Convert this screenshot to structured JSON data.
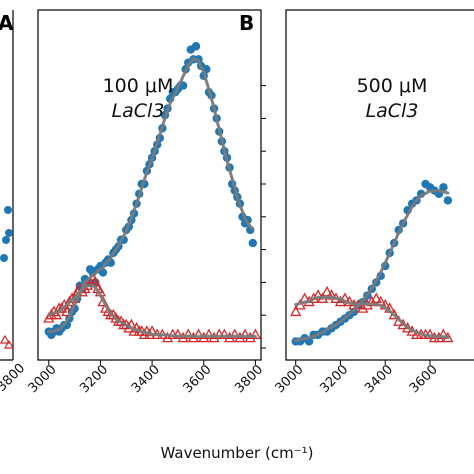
{
  "figure": {
    "xlabel": "Wavenumber (cm⁻¹)"
  },
  "colors": {
    "blue": "#1f77b4",
    "red": "#d62728",
    "fit": "#7a7a7a"
  },
  "chart_data": [
    {
      "panel_label": "A",
      "type": "scatter",
      "xtick_labels": [
        "3800"
      ],
      "series": [],
      "note_partial": true
    },
    {
      "panel_label": "B",
      "type": "scatter",
      "annotation_line1": "100 μM",
      "annotation_line2": "LaCl3",
      "xlim": [
        2970,
        3810
      ],
      "ylim": [
        0,
        1
      ],
      "xtick_labels": [
        "3000",
        "3200",
        "3400",
        "3600",
        "3800"
      ],
      "xticks": [
        3000,
        3200,
        3400,
        3600,
        3800
      ],
      "yticks": [
        0.0,
        0.1,
        0.2,
        0.3,
        0.4,
        0.5,
        0.6,
        0.7,
        0.8
      ],
      "series": [
        {
          "marker": "circle",
          "color": "#1f77b4",
          "x": [
            3000,
            3010,
            3020,
            3030,
            3040,
            3050,
            3060,
            3070,
            3080,
            3090,
            3100,
            3110,
            3120,
            3130,
            3140,
            3150,
            3160,
            3170,
            3180,
            3190,
            3200,
            3210,
            3220,
            3230,
            3240,
            3250,
            3260,
            3270,
            3280,
            3290,
            3300,
            3310,
            3320,
            3330,
            3340,
            3350,
            3360,
            3370,
            3380,
            3390,
            3400,
            3410,
            3420,
            3430,
            3440,
            3450,
            3460,
            3470,
            3480,
            3490,
            3500,
            3510,
            3520,
            3530,
            3540,
            3550,
            3560,
            3570,
            3580,
            3590,
            3600,
            3610,
            3620,
            3630,
            3640,
            3650,
            3660,
            3670,
            3680,
            3690,
            3700,
            3710,
            3720,
            3730,
            3740,
            3750,
            3760,
            3770,
            3780,
            3790
          ],
          "y": [
            0.05,
            0.04,
            0.05,
            0.06,
            0.05,
            0.06,
            0.07,
            0.07,
            0.09,
            0.11,
            0.12,
            0.15,
            0.19,
            0.18,
            0.21,
            0.2,
            0.24,
            0.23,
            0.2,
            0.24,
            0.25,
            0.23,
            0.26,
            0.27,
            0.26,
            0.29,
            0.3,
            0.31,
            0.33,
            0.33,
            0.36,
            0.37,
            0.39,
            0.41,
            0.44,
            0.47,
            0.5,
            0.5,
            0.54,
            0.56,
            0.58,
            0.6,
            0.62,
            0.64,
            0.67,
            0.71,
            0.73,
            0.76,
            0.78,
            0.78,
            0.79,
            0.8,
            0.8,
            0.85,
            0.87,
            0.91,
            0.88,
            0.92,
            0.88,
            0.86,
            0.83,
            0.85,
            0.78,
            0.77,
            0.73,
            0.7,
            0.66,
            0.63,
            0.6,
            0.58,
            0.55,
            0.5,
            0.48,
            0.46,
            0.44,
            0.4,
            0.38,
            0.39,
            0.36,
            0.32
          ]
        },
        {
          "marker": "triangle",
          "color": "#d62728",
          "x": [
            3000,
            3010,
            3020,
            3030,
            3040,
            3050,
            3060,
            3070,
            3080,
            3090,
            3100,
            3110,
            3120,
            3130,
            3140,
            3150,
            3160,
            3170,
            3180,
            3190,
            3200,
            3210,
            3220,
            3230,
            3240,
            3250,
            3260,
            3270,
            3280,
            3290,
            3300,
            3310,
            3320,
            3330,
            3340,
            3350,
            3360,
            3370,
            3380,
            3390,
            3400,
            3420,
            3440,
            3460,
            3480,
            3500,
            3520,
            3540,
            3560,
            3580,
            3600,
            3620,
            3640,
            3660,
            3680,
            3700,
            3720,
            3740,
            3760,
            3780,
            3800
          ],
          "y": [
            0.09,
            0.1,
            0.11,
            0.1,
            0.12,
            0.12,
            0.13,
            0.11,
            0.14,
            0.15,
            0.15,
            0.17,
            0.18,
            0.17,
            0.18,
            0.19,
            0.2,
            0.21,
            0.2,
            0.18,
            0.17,
            0.14,
            0.12,
            0.11,
            0.1,
            0.1,
            0.09,
            0.08,
            0.08,
            0.07,
            0.07,
            0.06,
            0.07,
            0.05,
            0.06,
            0.05,
            0.05,
            0.04,
            0.05,
            0.04,
            0.05,
            0.04,
            0.04,
            0.03,
            0.04,
            0.04,
            0.03,
            0.04,
            0.03,
            0.04,
            0.03,
            0.04,
            0.03,
            0.04,
            0.04,
            0.03,
            0.04,
            0.03,
            0.04,
            0.03,
            0.04
          ]
        }
      ]
    },
    {
      "panel_label": "",
      "type": "scatter",
      "annotation_line1": "500 μM",
      "annotation_line2": "LaCl3",
      "xlim": [
        2970,
        3810
      ],
      "ylim": [
        0,
        1
      ],
      "xtick_labels": [
        "3000",
        "3200",
        "3400",
        "3600"
      ],
      "xticks": [
        3000,
        3200,
        3400,
        3600
      ],
      "series": [
        {
          "marker": "circle",
          "color": "#1f77b4",
          "x": [
            3000,
            3020,
            3040,
            3060,
            3080,
            3100,
            3120,
            3140,
            3160,
            3180,
            3200,
            3220,
            3240,
            3260,
            3280,
            3300,
            3320,
            3340,
            3360,
            3380,
            3400,
            3420,
            3440,
            3460,
            3480,
            3500,
            3520,
            3540,
            3560,
            3580,
            3600,
            3620,
            3640,
            3660,
            3680
          ],
          "y": [
            0.02,
            0.02,
            0.03,
            0.02,
            0.04,
            0.04,
            0.05,
            0.05,
            0.06,
            0.07,
            0.08,
            0.09,
            0.1,
            0.11,
            0.13,
            0.14,
            0.16,
            0.18,
            0.2,
            0.22,
            0.25,
            0.29,
            0.32,
            0.36,
            0.38,
            0.42,
            0.44,
            0.45,
            0.47,
            0.5,
            0.49,
            0.48,
            0.47,
            0.49,
            0.45
          ]
        },
        {
          "marker": "triangle",
          "color": "#d62728",
          "x": [
            3000,
            3020,
            3040,
            3060,
            3080,
            3100,
            3120,
            3140,
            3160,
            3180,
            3200,
            3220,
            3240,
            3260,
            3280,
            3300,
            3320,
            3340,
            3360,
            3380,
            3400,
            3420,
            3440,
            3460,
            3480,
            3500,
            3520,
            3540,
            3560,
            3580,
            3600,
            3620,
            3640,
            3660,
            3680
          ],
          "y": [
            0.11,
            0.13,
            0.15,
            0.14,
            0.15,
            0.16,
            0.15,
            0.17,
            0.16,
            0.15,
            0.14,
            0.15,
            0.14,
            0.13,
            0.13,
            0.12,
            0.13,
            0.14,
            0.15,
            0.14,
            0.13,
            0.12,
            0.1,
            0.08,
            0.07,
            0.06,
            0.05,
            0.04,
            0.04,
            0.04,
            0.04,
            0.03,
            0.03,
            0.04,
            0.03
          ]
        }
      ]
    }
  ]
}
